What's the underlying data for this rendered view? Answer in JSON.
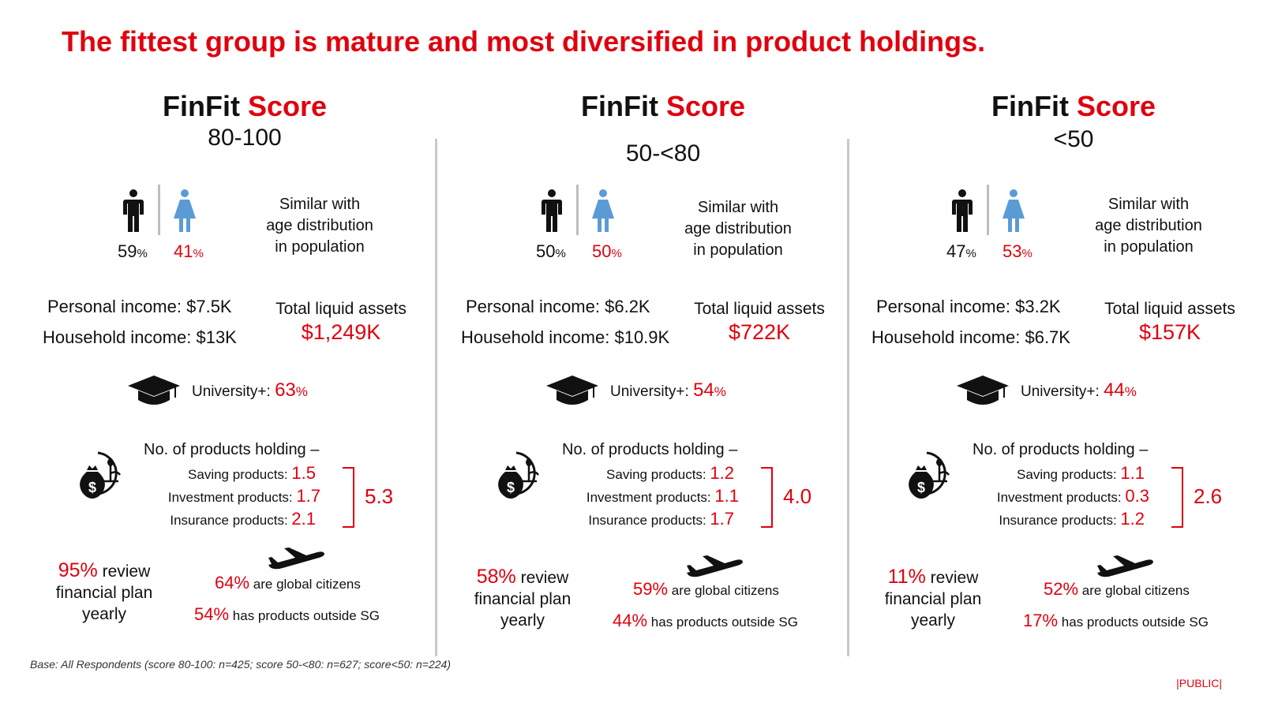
{
  "title": "The fittest group is mature and most diversified in product holdings.",
  "groups": [
    {
      "head_a": "FinFit",
      "head_b": "Score",
      "range": "80-100",
      "male_pct": "59",
      "female_pct": "41",
      "pct_sign": "%",
      "age_text": [
        "Similar with",
        "age distribution",
        "in population"
      ],
      "personal_income_label": "Personal income:",
      "personal_income": "$7.5K",
      "household_income_label": "Household income:",
      "household_income": "$13K",
      "assets_label": "Total liquid assets",
      "assets_value": "$1,249K",
      "university_label": "University+:",
      "university_pct": "63",
      "products_head": "No. of products holding –",
      "saving_label": "Saving products:",
      "saving": "1.5",
      "investment_label": "Investment products:",
      "investment": "1.7",
      "insurance_label": "Insurance products:",
      "insurance": "2.1",
      "total": "5.3",
      "review_pct": "95%",
      "review_text_1": "review",
      "review_text_2": "financial plan",
      "review_text_3": "yearly",
      "global_pct": "64%",
      "global_text": "are global citizens",
      "outside_pct": "54%",
      "outside_text": "has products outside SG"
    },
    {
      "head_a": "FinFit",
      "head_b": "Score",
      "range": "50-<80",
      "male_pct": "50",
      "female_pct": "50",
      "pct_sign": "%",
      "age_text": [
        "Similar with",
        "age distribution",
        "in population"
      ],
      "personal_income_label": "Personal income:",
      "personal_income": "$6.2K",
      "household_income_label": "Household income:",
      "household_income": "$10.9K",
      "assets_label": "Total liquid assets",
      "assets_value": "$722K",
      "university_label": "University+:",
      "university_pct": "54",
      "products_head": "No. of products holding –",
      "saving_label": "Saving products:",
      "saving": "1.2",
      "investment_label": "Investment products:",
      "investment": "1.1",
      "insurance_label": "Insurance products:",
      "insurance": "1.7",
      "total": "4.0",
      "review_pct": "58%",
      "review_text_1": "review",
      "review_text_2": "financial plan",
      "review_text_3": "yearly",
      "global_pct": "59%",
      "global_text": "are global citizens",
      "outside_pct": "44%",
      "outside_text": "has products outside SG"
    },
    {
      "head_a": "FinFit",
      "head_b": "Score",
      "range": "<50",
      "male_pct": "47",
      "female_pct": "53",
      "pct_sign": "%",
      "age_text": [
        "Similar with",
        "age distribution",
        "in population"
      ],
      "personal_income_label": "Personal income:",
      "personal_income": "$3.2K",
      "household_income_label": "Household income:",
      "household_income": "$6.7K",
      "assets_label": "Total liquid assets",
      "assets_value": "$157K",
      "university_label": "University+:",
      "university_pct": "44",
      "products_head": "No. of products holding –",
      "saving_label": "Saving products:",
      "saving": "1.1",
      "investment_label": "Investment products:",
      "investment": "0.3",
      "insurance_label": "Insurance products:",
      "insurance": "1.2",
      "total": "2.6",
      "review_pct": "11%",
      "review_text_1": "review",
      "review_text_2": "financial plan",
      "review_text_3": "yearly",
      "global_pct": "52%",
      "global_text": "are global citizens",
      "outside_pct": "17%",
      "outside_text": "has products outside SG"
    }
  ],
  "icons": [
    "male-icon",
    "female-icon",
    "graduation-cap-icon",
    "money-bag-plant-icon",
    "airplane-icon"
  ],
  "colors": {
    "accent": "#e0000e",
    "female": "#5b9bd5",
    "divider": "#c9c9c9"
  },
  "base_note": "Base: All Respondents (score 80-100: n=425; score 50-<80: n=627; score<50: n=224)",
  "classification": "|PUBLIC|"
}
